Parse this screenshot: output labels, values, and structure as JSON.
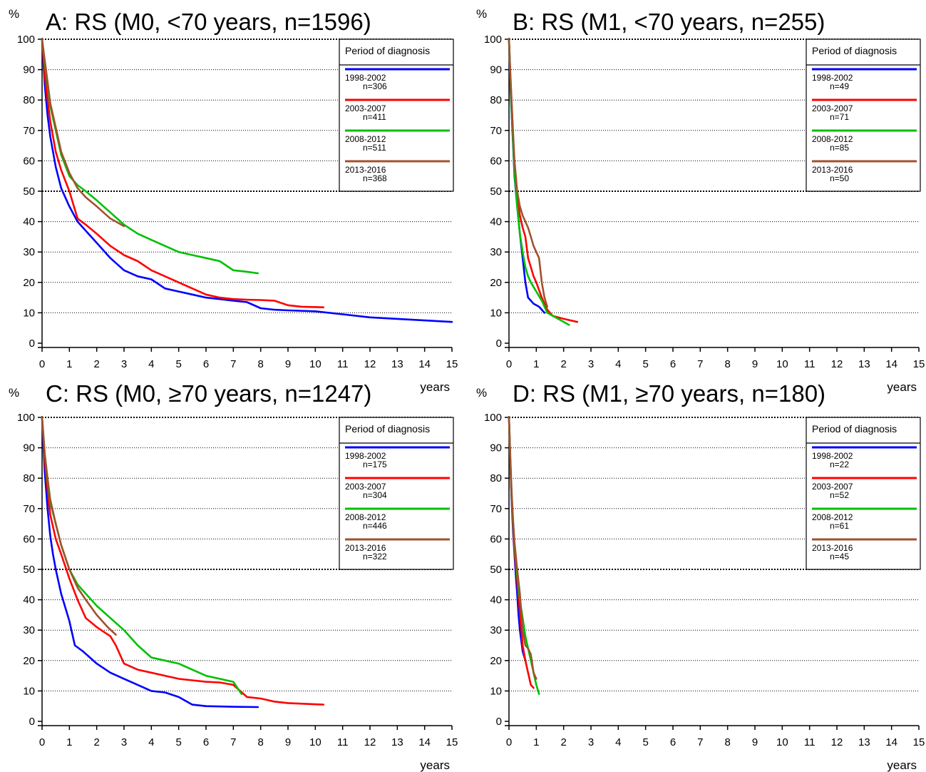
{
  "colors": {
    "blue": "#0000ff",
    "red": "#ff0000",
    "green": "#00c000",
    "brown": "#a0522d"
  },
  "chart_data": [
    {
      "type": "line",
      "title": "A: RS (M0, <70 years, n=1596)",
      "ylabel": "%",
      "xlabel": "years",
      "xlim": [
        0,
        15
      ],
      "ylim": [
        0,
        100
      ],
      "xticks": [
        "0",
        "1",
        "2",
        "3",
        "4",
        "5",
        "6",
        "7",
        "8",
        "9",
        "10",
        "11",
        "12",
        "13",
        "14",
        "15"
      ],
      "yticks": [
        "0",
        "10",
        "20",
        "30",
        "40",
        "50",
        "60",
        "70",
        "80",
        "90",
        "100"
      ],
      "legend": {
        "title": "Period of diagnosis",
        "position": "top-right"
      },
      "series": [
        {
          "name": "1998-2002",
          "n": "n=306",
          "color": "#0000ff",
          "x": [
            0,
            0.1,
            0.2,
            0.3,
            0.5,
            0.7,
            1.0,
            1.3,
            1.6,
            2.0,
            2.5,
            3.0,
            3.5,
            4.0,
            4.5,
            5.0,
            5.5,
            6.0,
            6.5,
            7.0,
            7.5,
            8.0,
            8.5,
            9.0,
            10.0,
            11.0,
            12.0,
            13.0,
            14.0,
            15.0
          ],
          "y": [
            100,
            85,
            75,
            68,
            58,
            51,
            45,
            40,
            37,
            33,
            28,
            24,
            22,
            21,
            18,
            17,
            16,
            15,
            14.5,
            14,
            13.5,
            11.5,
            11,
            10.8,
            10.5,
            9.5,
            8.5,
            8,
            7.5,
            7
          ]
        },
        {
          "name": "2003-2007",
          "n": "n=411",
          "color": "#ff0000",
          "x": [
            0,
            0.1,
            0.2,
            0.3,
            0.5,
            0.7,
            1.0,
            1.3,
            1.6,
            2.0,
            2.5,
            3.0,
            3.5,
            4.0,
            4.5,
            5.0,
            5.5,
            6.0,
            6.5,
            7.0,
            7.5,
            8.0,
            8.5,
            9.0,
            9.5,
            10.3
          ],
          "y": [
            100,
            88,
            80,
            73,
            63,
            57,
            50,
            41,
            39,
            36,
            32,
            29,
            27,
            24,
            22,
            20,
            18,
            16,
            15,
            14.5,
            14.3,
            14.2,
            14,
            12.5,
            12,
            11.8
          ]
        },
        {
          "name": "2008-2012",
          "n": "n=511",
          "color": "#00c000",
          "x": [
            0,
            0.1,
            0.2,
            0.3,
            0.5,
            0.7,
            1.0,
            1.3,
            1.6,
            2.0,
            2.5,
            3.0,
            3.5,
            4.0,
            4.5,
            5.0,
            5.5,
            6.0,
            6.5,
            7.0,
            7.5,
            7.9
          ],
          "y": [
            100,
            92,
            85,
            78,
            70,
            62,
            55,
            52,
            50,
            47,
            43,
            39,
            36,
            34,
            32,
            30,
            29,
            28,
            27,
            24,
            23.5,
            23
          ]
        },
        {
          "name": "2013-2016",
          "n": "n=368",
          "color": "#a0522d",
          "x": [
            0,
            0.1,
            0.2,
            0.3,
            0.5,
            0.7,
            1.0,
            1.3,
            1.6,
            2.0,
            2.5,
            3.0
          ],
          "y": [
            100,
            93,
            86,
            79,
            71,
            63,
            56,
            51,
            48,
            45,
            41,
            38.5
          ]
        }
      ]
    },
    {
      "type": "line",
      "title": "B: RS (M1, <70 years, n=255)",
      "ylabel": "%",
      "xlabel": "years",
      "xlim": [
        0,
        15
      ],
      "ylim": [
        0,
        100
      ],
      "xticks": [
        "0",
        "1",
        "2",
        "3",
        "4",
        "5",
        "6",
        "7",
        "8",
        "9",
        "10",
        "11",
        "12",
        "13",
        "14",
        "15"
      ],
      "yticks": [
        "0",
        "10",
        "20",
        "30",
        "40",
        "50",
        "60",
        "70",
        "80",
        "90",
        "100"
      ],
      "legend": {
        "title": "Period of diagnosis",
        "position": "top-right"
      },
      "series": [
        {
          "name": "1998-2002",
          "n": "n=49",
          "color": "#0000ff",
          "x": [
            0,
            0.05,
            0.1,
            0.15,
            0.2,
            0.3,
            0.4,
            0.5,
            0.6,
            0.7,
            0.9,
            1.1,
            1.3
          ],
          "y": [
            100,
            85,
            75,
            65,
            55,
            45,
            36,
            28,
            20,
            15,
            13,
            12,
            10
          ]
        },
        {
          "name": "2003-2007",
          "n": "n=71",
          "color": "#ff0000",
          "x": [
            0,
            0.05,
            0.1,
            0.15,
            0.2,
            0.3,
            0.4,
            0.5,
            0.6,
            0.7,
            0.8,
            0.9,
            1.0,
            1.2,
            1.4,
            1.6,
            2.0,
            2.5
          ],
          "y": [
            100,
            88,
            78,
            68,
            58,
            48,
            42,
            38,
            35,
            28,
            25,
            22,
            20,
            15,
            11,
            9,
            8,
            7
          ]
        },
        {
          "name": "2008-2012",
          "n": "n=85",
          "color": "#00c000",
          "x": [
            0,
            0.05,
            0.1,
            0.15,
            0.2,
            0.3,
            0.4,
            0.5,
            0.6,
            0.7,
            0.8,
            1.0,
            1.2,
            1.4,
            1.8,
            2.2
          ],
          "y": [
            100,
            87,
            76,
            66,
            56,
            45,
            36,
            30,
            25,
            22,
            20,
            17,
            14,
            10,
            8,
            6
          ]
        },
        {
          "name": "2013-2016",
          "n": "n=50",
          "color": "#a0522d",
          "x": [
            0,
            0.05,
            0.1,
            0.15,
            0.2,
            0.3,
            0.4,
            0.5,
            0.6,
            0.7,
            0.8,
            0.9,
            1.0,
            1.1,
            1.2,
            1.3,
            1.4
          ],
          "y": [
            100,
            89,
            79,
            69,
            60,
            50,
            45,
            42,
            40,
            38,
            35,
            32,
            30,
            28,
            20,
            15,
            12
          ]
        }
      ]
    },
    {
      "type": "line",
      "title": "C: RS (M0, ≥70 years, n=1247)",
      "ylabel": "%",
      "xlabel": "years",
      "xlim": [
        0,
        15
      ],
      "ylim": [
        0,
        100
      ],
      "xticks": [
        "0",
        "1",
        "2",
        "3",
        "4",
        "5",
        "6",
        "7",
        "8",
        "9",
        "10",
        "11",
        "12",
        "13",
        "14",
        "15"
      ],
      "yticks": [
        "0",
        "10",
        "20",
        "30",
        "40",
        "50",
        "60",
        "70",
        "80",
        "90",
        "100"
      ],
      "legend": {
        "title": "Period of diagnosis",
        "position": "top-right"
      },
      "series": [
        {
          "name": "1998-2002",
          "n": "n=175",
          "color": "#0000ff",
          "x": [
            0,
            0.1,
            0.2,
            0.3,
            0.4,
            0.5,
            0.7,
            1.0,
            1.2,
            1.5,
            2.0,
            2.5,
            3.0,
            3.5,
            4.0,
            4.5,
            5.0,
            5.5,
            6.0,
            7.0,
            7.9
          ],
          "y": [
            100,
            82,
            70,
            61,
            55,
            50,
            42,
            33,
            25,
            23,
            19,
            16,
            14,
            12,
            10,
            9.5,
            8,
            5.5,
            5,
            4.8,
            4.7
          ]
        },
        {
          "name": "2003-2007",
          "n": "n=304",
          "color": "#ff0000",
          "x": [
            0,
            0.1,
            0.2,
            0.3,
            0.5,
            0.7,
            1.0,
            1.3,
            1.6,
            2.0,
            2.5,
            2.7,
            3.0,
            3.5,
            4.0,
            4.5,
            5.0,
            5.5,
            6.0,
            6.5,
            7.0,
            7.5,
            8.0,
            8.5,
            9.0,
            10.3
          ],
          "y": [
            100,
            86,
            76,
            68,
            60,
            55,
            47,
            40,
            34,
            31,
            28,
            25,
            19,
            17,
            16,
            15,
            14,
            13.5,
            13,
            12.8,
            12,
            8,
            7.5,
            6.5,
            6,
            5.5
          ]
        },
        {
          "name": "2008-2012",
          "n": "n=446",
          "color": "#00c000",
          "x": [
            0,
            0.1,
            0.2,
            0.3,
            0.5,
            0.7,
            1.0,
            1.3,
            1.6,
            2.0,
            2.5,
            3.0,
            3.5,
            4.0,
            4.5,
            5.0,
            5.5,
            6.0,
            6.5,
            7.0,
            7.3
          ],
          "y": [
            100,
            88,
            79,
            72,
            65,
            58,
            50,
            45,
            42,
            38,
            34,
            30,
            25,
            21,
            20,
            19,
            17,
            15,
            14,
            13,
            9
          ]
        },
        {
          "name": "2013-2016",
          "n": "n=322",
          "color": "#a0522d",
          "x": [
            0,
            0.1,
            0.2,
            0.3,
            0.5,
            0.7,
            1.0,
            1.3,
            1.6,
            2.0,
            2.4,
            2.7
          ],
          "y": [
            100,
            88,
            80,
            73,
            65,
            58,
            50,
            44,
            40,
            35,
            31,
            28.5
          ]
        }
      ]
    },
    {
      "type": "line",
      "title": "D: RS (M1, ≥70 years, n=180)",
      "ylabel": "%",
      "xlabel": "years",
      "xlim": [
        0,
        15
      ],
      "ylim": [
        0,
        100
      ],
      "xticks": [
        "0",
        "1",
        "2",
        "3",
        "4",
        "5",
        "6",
        "7",
        "8",
        "9",
        "10",
        "11",
        "12",
        "13",
        "14",
        "15"
      ],
      "yticks": [
        "0",
        "10",
        "20",
        "30",
        "40",
        "50",
        "60",
        "70",
        "80",
        "90",
        "100"
      ],
      "legend": {
        "title": "Period of diagnosis",
        "position": "top-right"
      },
      "series": [
        {
          "name": "1998-2002",
          "n": "n=22",
          "color": "#0000ff",
          "x": [
            0,
            0.05,
            0.1,
            0.15,
            0.2,
            0.25,
            0.3,
            0.35,
            0.4,
            0.5,
            0.6
          ],
          "y": [
            100,
            85,
            72,
            62,
            55,
            48,
            42,
            35,
            30,
            23,
            20
          ]
        },
        {
          "name": "2003-2007",
          "n": "n=52",
          "color": "#ff0000",
          "x": [
            0,
            0.05,
            0.1,
            0.15,
            0.2,
            0.3,
            0.4,
            0.5,
            0.6,
            0.7,
            0.8,
            0.9
          ],
          "y": [
            100,
            85,
            73,
            64,
            56,
            46,
            36,
            25,
            20,
            16,
            12,
            11
          ]
        },
        {
          "name": "2008-2012",
          "n": "n=61",
          "color": "#00c000",
          "x": [
            0,
            0.05,
            0.1,
            0.15,
            0.2,
            0.3,
            0.4,
            0.5,
            0.6,
            0.7,
            0.8,
            0.9,
            1.0,
            1.1
          ],
          "y": [
            100,
            86,
            74,
            65,
            58,
            48,
            40,
            34,
            28,
            24,
            20,
            16,
            12,
            9
          ]
        },
        {
          "name": "2013-2016",
          "n": "n=45",
          "color": "#a0522d",
          "x": [
            0,
            0.05,
            0.1,
            0.15,
            0.2,
            0.3,
            0.4,
            0.5,
            0.6,
            0.7,
            0.8,
            0.9,
            1.0
          ],
          "y": [
            100,
            87,
            75,
            66,
            59,
            50,
            42,
            30,
            25,
            24,
            22,
            16,
            14
          ]
        }
      ]
    }
  ]
}
